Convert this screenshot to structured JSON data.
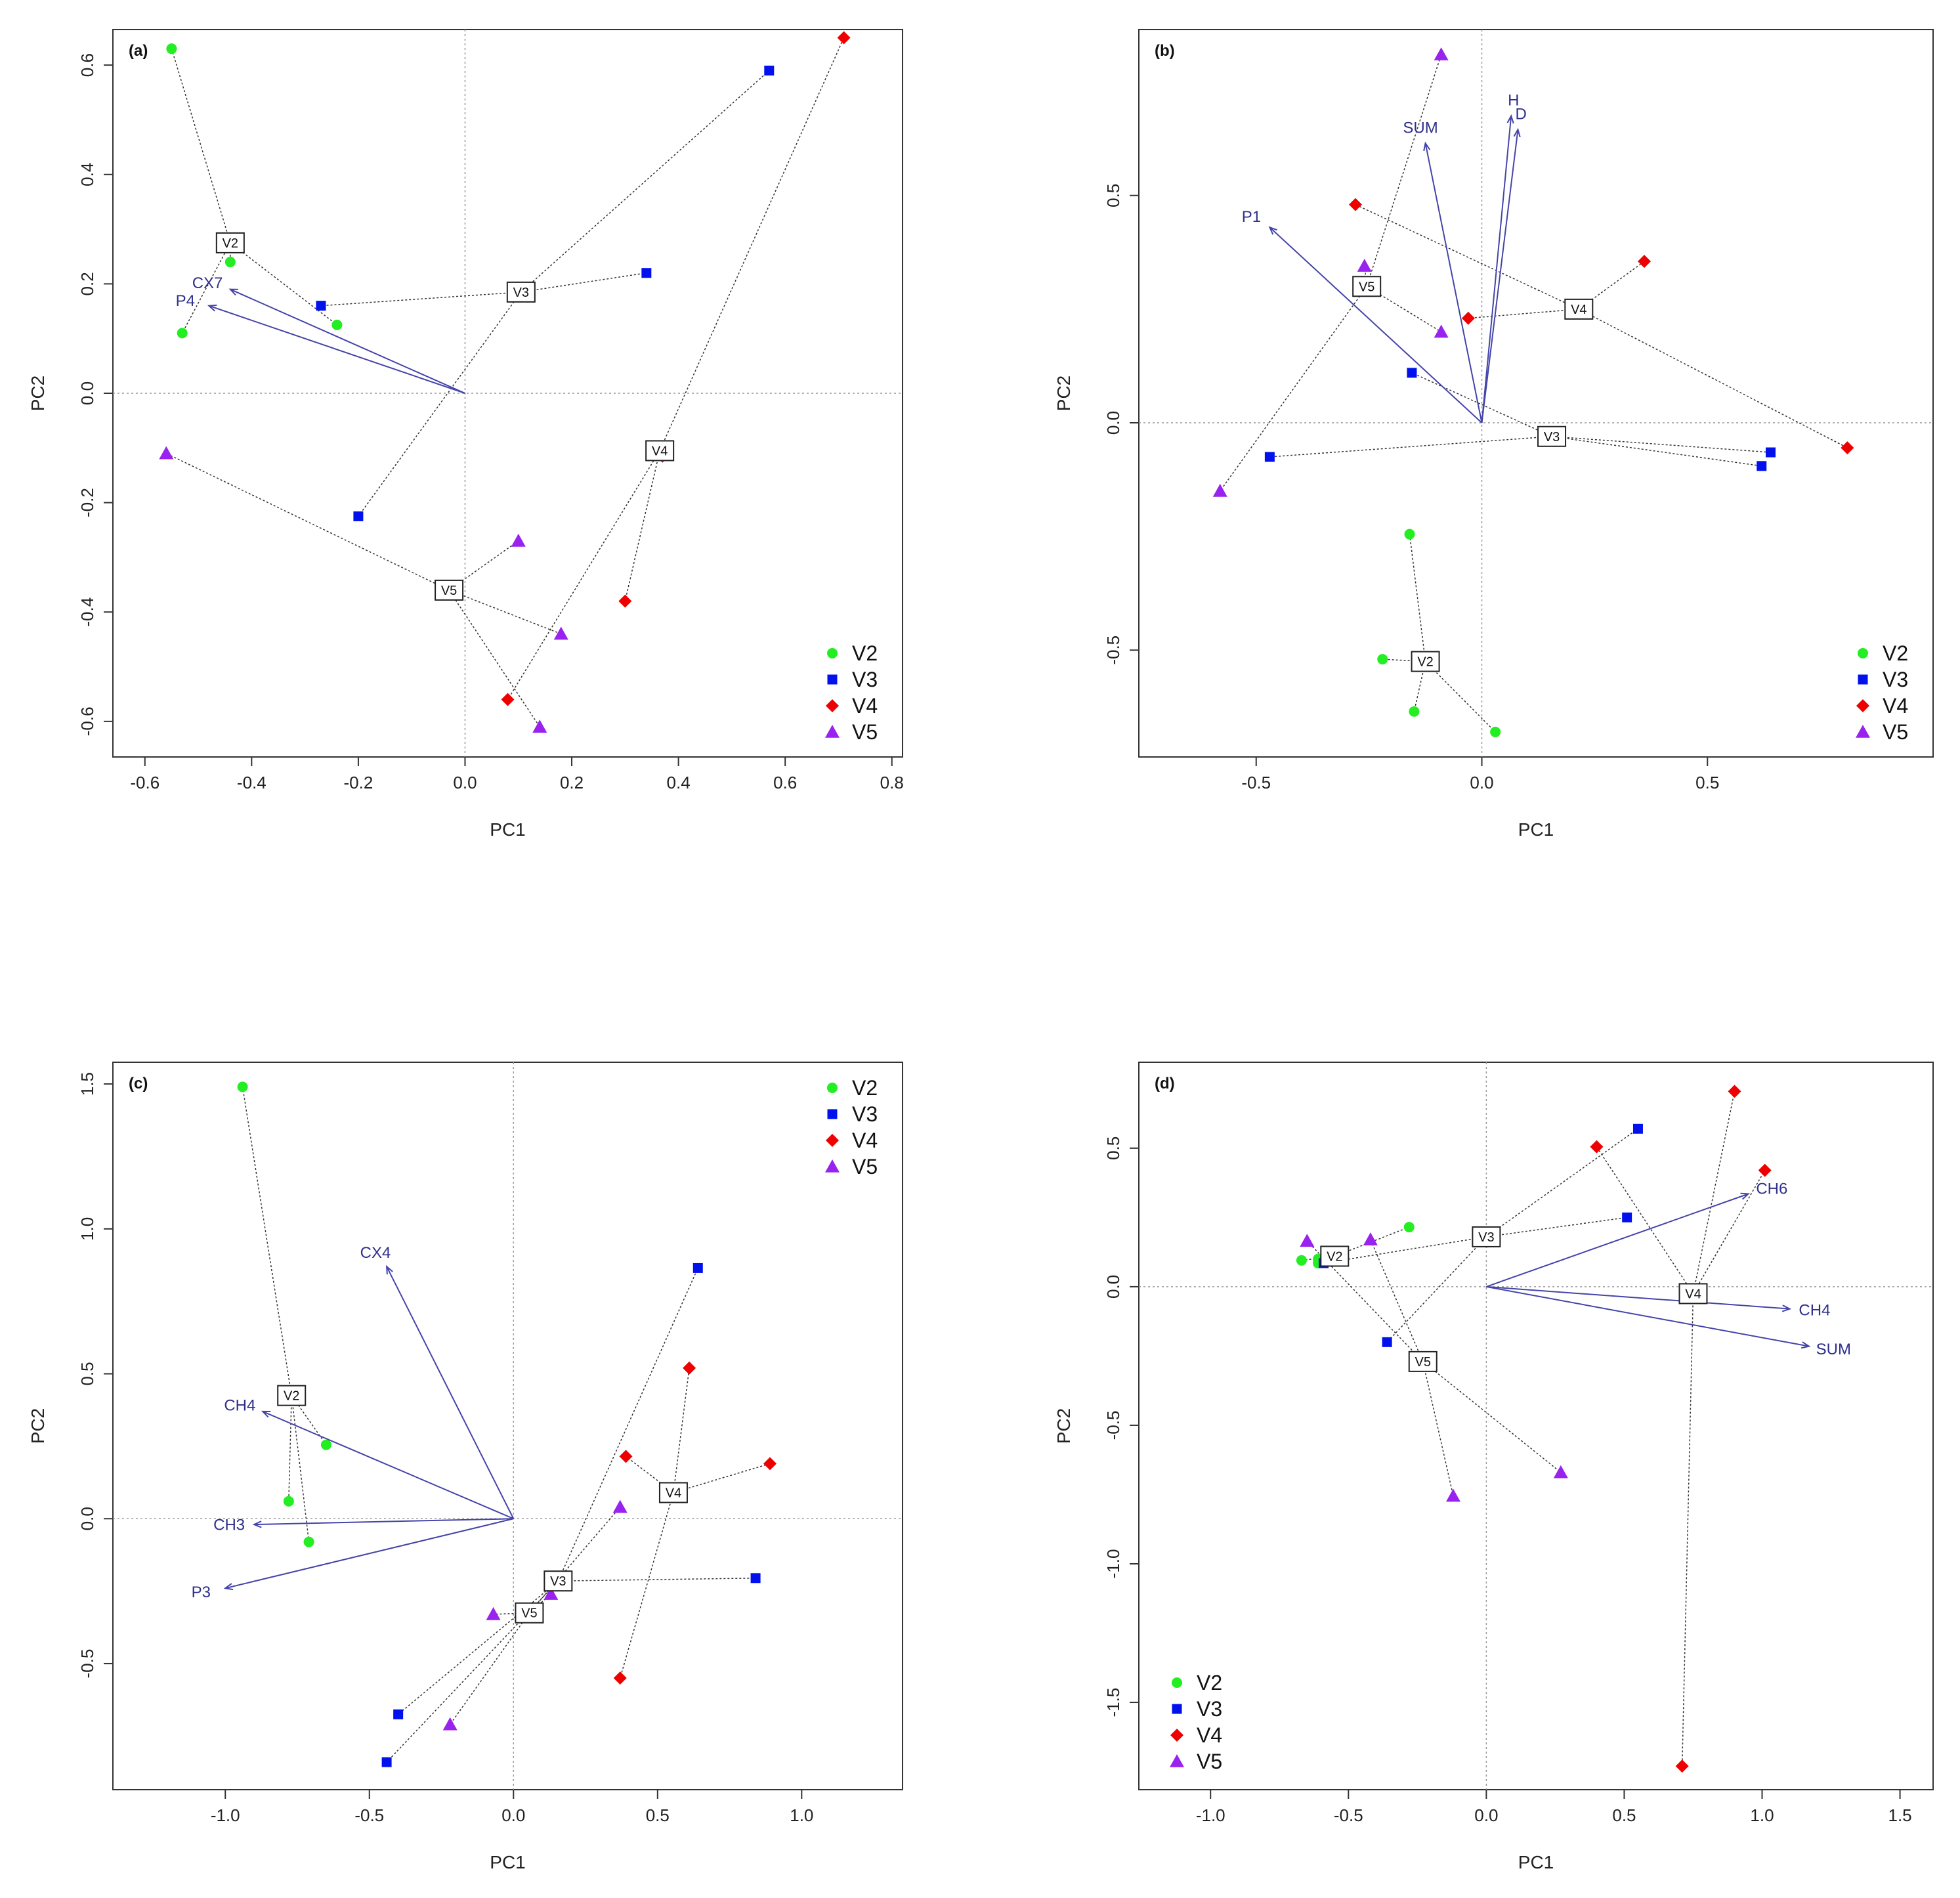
{
  "colors": {
    "V2": "#22ee22",
    "V3": "#0011ee",
    "V4": "#ee0000",
    "V5": "#9922ee",
    "arrow": "#4444aa",
    "frame": "#333333"
  },
  "legend_items": [
    {
      "name": "V2",
      "shape": "circle"
    },
    {
      "name": "V3",
      "shape": "square"
    },
    {
      "name": "V4",
      "shape": "diamond"
    },
    {
      "name": "V5",
      "shape": "triangle"
    }
  ],
  "chart_data": [
    {
      "type": "scatter",
      "panel": "(a)",
      "xlabel": "PC1",
      "ylabel": "PC2",
      "xlim": [
        -0.66,
        0.82
      ],
      "ylim": [
        -0.665,
        0.665
      ],
      "xticks": [
        -0.6,
        -0.4,
        -0.2,
        0.0,
        0.2,
        0.4,
        0.6,
        0.8
      ],
      "yticks": [
        -0.6,
        -0.4,
        -0.2,
        0.0,
        0.2,
        0.4,
        0.6
      ],
      "xtick_labels": [
        "-0.6",
        "-0.4",
        "-0.2",
        "0.0",
        "0.2",
        "0.4",
        "0.6",
        "0.8"
      ],
      "ytick_labels": [
        "-0.6",
        "-0.4",
        "-0.2",
        "0.0",
        "0.2",
        "0.4",
        "0.6"
      ],
      "legend_position": "bottom-right",
      "groups": [
        {
          "name": "V2",
          "centroid": [
            -0.44,
            0.275
          ],
          "points": [
            [
              -0.55,
              0.63
            ],
            [
              -0.44,
              0.24
            ],
            [
              -0.24,
              0.125
            ],
            [
              -0.53,
              0.11
            ]
          ]
        },
        {
          "name": "V3",
          "centroid": [
            0.105,
            0.185
          ],
          "points": [
            [
              0.57,
              0.59
            ],
            [
              0.34,
              0.22
            ],
            [
              -0.27,
              0.16
            ],
            [
              -0.2,
              -0.225
            ]
          ]
        },
        {
          "name": "V4",
          "centroid": [
            0.365,
            -0.105
          ],
          "points": [
            [
              0.71,
              0.65
            ],
            [
              0.37,
              -0.115
            ],
            [
              0.3,
              -0.38
            ],
            [
              0.08,
              -0.56
            ]
          ]
        },
        {
          "name": "V5",
          "centroid": [
            -0.03,
            -0.36
          ],
          "points": [
            [
              -0.56,
              -0.11
            ],
            [
              0.1,
              -0.27
            ],
            [
              0.18,
              -0.44
            ],
            [
              0.14,
              -0.61
            ]
          ]
        }
      ],
      "loadings": [
        {
          "label": "CX7",
          "x": -0.44,
          "y": 0.19
        },
        {
          "label": "P4",
          "x": -0.48,
          "y": 0.16
        }
      ]
    },
    {
      "type": "scatter",
      "panel": "(b)",
      "xlabel": "PC1",
      "ylabel": "PC2",
      "xlim": [
        -0.76,
        1.0
      ],
      "ylim": [
        -0.735,
        0.865
      ],
      "xticks": [
        -0.5,
        0.0,
        0.5
      ],
      "yticks": [
        -0.5,
        0.0,
        0.5
      ],
      "xtick_labels": [
        "-0.5",
        "0.0",
        "0.5"
      ],
      "ytick_labels": [
        "-0.5",
        "0.0",
        "0.5"
      ],
      "legend_position": "bottom-right",
      "groups": [
        {
          "name": "V2",
          "centroid": [
            -0.125,
            -0.525
          ],
          "points": [
            [
              -0.16,
              -0.245
            ],
            [
              -0.22,
              -0.52
            ],
            [
              -0.15,
              -0.635
            ],
            [
              0.03,
              -0.68
            ]
          ]
        },
        {
          "name": "V3",
          "centroid": [
            0.155,
            -0.03
          ],
          "points": [
            [
              -0.155,
              0.11
            ],
            [
              -0.47,
              -0.075
            ],
            [
              0.64,
              -0.065
            ],
            [
              0.62,
              -0.095
            ]
          ]
        },
        {
          "name": "V4",
          "centroid": [
            0.215,
            0.25
          ],
          "points": [
            [
              -0.28,
              0.48
            ],
            [
              -0.03,
              0.23
            ],
            [
              0.36,
              0.355
            ],
            [
              0.81,
              -0.055
            ]
          ]
        },
        {
          "name": "V5",
          "centroid": [
            -0.255,
            0.3
          ],
          "points": [
            [
              -0.09,
              0.81
            ],
            [
              -0.26,
              0.345
            ],
            [
              -0.09,
              0.2
            ],
            [
              -0.58,
              -0.15
            ]
          ]
        }
      ],
      "loadings": [
        {
          "label": "P1",
          "x": -0.47,
          "y": 0.43
        },
        {
          "label": "SUM",
          "x": -0.125,
          "y": 0.615
        },
        {
          "label": "H",
          "x": 0.065,
          "y": 0.675
        },
        {
          "label": "D",
          "x": 0.08,
          "y": 0.645
        }
      ]
    },
    {
      "type": "scatter",
      "panel": "(c)",
      "xlabel": "PC1",
      "ylabel": "PC2",
      "xlim": [
        -1.39,
        1.35
      ],
      "ylim": [
        -0.935,
        1.575
      ],
      "xticks": [
        -1.0,
        -0.5,
        0.0,
        0.5,
        1.0
      ],
      "yticks": [
        -0.5,
        0.0,
        0.5,
        1.0,
        1.5
      ],
      "xtick_labels": [
        "-1.0",
        "-0.5",
        "0.0",
        "0.5",
        "1.0"
      ],
      "ytick_labels": [
        "-0.5",
        "0.0",
        "0.5",
        "1.0",
        "1.5"
      ],
      "legend_position": "top-right",
      "groups": [
        {
          "name": "V2",
          "centroid": [
            -0.77,
            0.425
          ],
          "points": [
            [
              -0.94,
              1.49
            ],
            [
              -0.65,
              0.255
            ],
            [
              -0.78,
              0.06
            ],
            [
              -0.71,
              -0.08
            ]
          ]
        },
        {
          "name": "V3",
          "centroid": [
            0.155,
            -0.215
          ],
          "points": [
            [
              0.64,
              0.865
            ],
            [
              0.84,
              -0.205
            ],
            [
              -0.4,
              -0.675
            ],
            [
              -0.44,
              -0.84
            ]
          ]
        },
        {
          "name": "V4",
          "centroid": [
            0.555,
            0.09
          ],
          "points": [
            [
              0.61,
              0.52
            ],
            [
              0.39,
              0.215
            ],
            [
              0.89,
              0.19
            ],
            [
              0.37,
              -0.55
            ]
          ]
        },
        {
          "name": "V5",
          "centroid": [
            0.055,
            -0.325
          ],
          "points": [
            [
              0.37,
              0.04
            ],
            [
              0.13,
              -0.26
            ],
            [
              -0.07,
              -0.33
            ],
            [
              -0.22,
              -0.71
            ]
          ]
        }
      ],
      "loadings": [
        {
          "label": "CX4",
          "x": -0.44,
          "y": 0.87
        },
        {
          "label": "CH4",
          "x": -0.87,
          "y": 0.37
        },
        {
          "label": "CH3",
          "x": -0.9,
          "y": -0.02
        },
        {
          "label": "P3",
          "x": -1.0,
          "y": -0.24
        }
      ]
    },
    {
      "type": "scatter",
      "panel": "(d)",
      "xlabel": "PC1",
      "ylabel": "PC2",
      "xlim": [
        -1.26,
        1.62
      ],
      "ylim": [
        -1.815,
        0.81
      ],
      "xticks": [
        -1.0,
        -0.5,
        0.0,
        0.5,
        1.0,
        1.5
      ],
      "yticks": [
        -1.5,
        -1.0,
        -0.5,
        0.0,
        0.5
      ],
      "xtick_labels": [
        "-1.0",
        "-0.5",
        "0.0",
        "0.5",
        "1.0",
        "1.5"
      ],
      "ytick_labels": [
        "-1.5",
        "-1.0",
        "-0.5",
        "0.0",
        "0.5"
      ],
      "legend_position": "bottom-left",
      "groups": [
        {
          "name": "V2",
          "centroid": [
            -0.55,
            0.11
          ],
          "points": [
            [
              -0.28,
              0.215
            ],
            [
              -0.67,
              0.095
            ],
            [
              -0.61,
              0.085
            ],
            [
              -0.61,
              0.1
            ]
          ]
        },
        {
          "name": "V3",
          "centroid": [
            0.0,
            0.18
          ],
          "points": [
            [
              0.55,
              0.57
            ],
            [
              0.51,
              0.25
            ],
            [
              -0.59,
              0.085
            ],
            [
              -0.36,
              -0.2
            ]
          ]
        },
        {
          "name": "V4",
          "centroid": [
            0.75,
            -0.025
          ],
          "points": [
            [
              0.9,
              0.705
            ],
            [
              0.4,
              0.505
            ],
            [
              1.01,
              0.42
            ],
            [
              0.71,
              -1.73
            ]
          ]
        },
        {
          "name": "V5",
          "centroid": [
            -0.23,
            -0.27
          ],
          "points": [
            [
              -0.65,
              0.165
            ],
            [
              -0.42,
              0.17
            ],
            [
              0.27,
              -0.67
            ],
            [
              -0.12,
              -0.755
            ]
          ]
        }
      ],
      "loadings": [
        {
          "label": "CH6",
          "x": 0.95,
          "y": 0.335
        },
        {
          "label": "CH4",
          "x": 1.1,
          "y": -0.08
        },
        {
          "label": "SUM",
          "x": 1.17,
          "y": -0.215
        }
      ]
    }
  ]
}
